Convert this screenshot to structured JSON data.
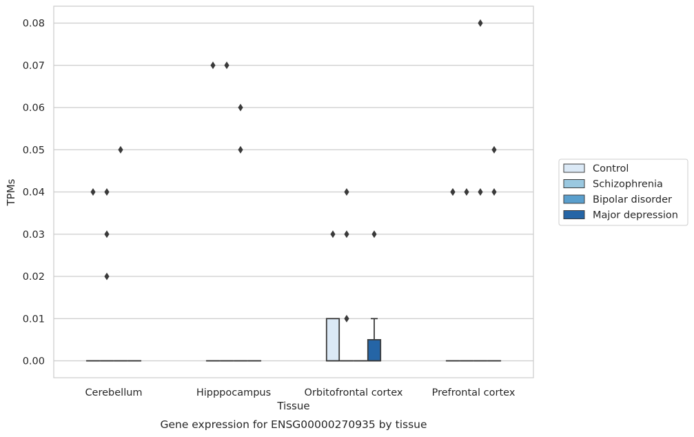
{
  "chart_data": {
    "type": "box",
    "caption": "Gene expression for ENSG00000270935 by tissue",
    "xlabel": "Tissue",
    "ylabel": "TPMs",
    "ylim": [
      -0.004,
      0.084
    ],
    "yticks": [
      0.0,
      0.01,
      0.02,
      0.03,
      0.04,
      0.05,
      0.06,
      0.07,
      0.08
    ],
    "ytick_labels": [
      "0.00",
      "0.01",
      "0.02",
      "0.03",
      "0.04",
      "0.05",
      "0.06",
      "0.07",
      "0.08"
    ],
    "grid": true,
    "legend_position": "right",
    "categories": [
      "Cerebellum",
      "Hipppocampus",
      "Orbitofrontal cortex",
      "Prefrontal cortex"
    ],
    "series": [
      {
        "name": "Control",
        "color": "#dbe9f6",
        "boxes": [
          {
            "q1": 0,
            "median": 0,
            "q3": 0,
            "whisker_low": 0,
            "whisker_high": 0,
            "outliers": [
              0.04
            ]
          },
          {
            "q1": 0,
            "median": 0,
            "q3": 0,
            "whisker_low": 0,
            "whisker_high": 0,
            "outliers": [
              0.07
            ]
          },
          {
            "q1": 0,
            "median": 0,
            "q3": 0.01,
            "whisker_low": 0,
            "whisker_high": 0.01,
            "outliers": [
              0.03
            ]
          },
          {
            "q1": 0,
            "median": 0,
            "q3": 0,
            "whisker_low": 0,
            "whisker_high": 0,
            "outliers": [
              0.04,
              0.04
            ]
          }
        ]
      },
      {
        "name": "Schizophrenia",
        "color": "#9ac8e0",
        "boxes": [
          {
            "q1": 0,
            "median": 0,
            "q3": 0,
            "whisker_low": 0,
            "whisker_high": 0,
            "outliers": [
              0.04,
              0.03,
              0.02
            ]
          },
          {
            "q1": 0,
            "median": 0,
            "q3": 0,
            "whisker_low": 0,
            "whisker_high": 0,
            "outliers": [
              0.07
            ]
          },
          {
            "q1": 0,
            "median": 0,
            "q3": 0,
            "whisker_low": 0,
            "whisker_high": 0,
            "outliers": [
              0.04,
              0.03,
              0.01
            ]
          },
          {
            "q1": 0,
            "median": 0,
            "q3": 0,
            "whisker_low": 0,
            "whisker_high": 0,
            "outliers": [
              0.04
            ]
          }
        ]
      },
      {
        "name": "Bipolar disorder",
        "color": "#5a9fcd",
        "boxes": [
          {
            "q1": 0,
            "median": 0,
            "q3": 0,
            "whisker_low": 0,
            "whisker_high": 0,
            "outliers": [
              0.05
            ]
          },
          {
            "q1": 0,
            "median": 0,
            "q3": 0,
            "whisker_low": 0,
            "whisker_high": 0,
            "outliers": [
              0.06,
              0.05
            ]
          },
          {
            "q1": 0,
            "median": 0,
            "q3": 0,
            "whisker_low": 0,
            "whisker_high": 0,
            "outliers": []
          },
          {
            "q1": 0,
            "median": 0,
            "q3": 0,
            "whisker_low": 0,
            "whisker_high": 0,
            "outliers": [
              0.08,
              0.04
            ]
          }
        ]
      },
      {
        "name": "Major depression",
        "color": "#2565a6",
        "boxes": [
          {
            "q1": 0,
            "median": 0,
            "q3": 0,
            "whisker_low": 0,
            "whisker_high": 0,
            "outliers": []
          },
          {
            "q1": 0,
            "median": 0,
            "q3": 0,
            "whisker_low": 0,
            "whisker_high": 0,
            "outliers": []
          },
          {
            "q1": 0,
            "median": 0,
            "q3": 0.005,
            "whisker_low": 0,
            "whisker_high": 0.01,
            "outliers": [
              0.03
            ]
          },
          {
            "q1": 0,
            "median": 0,
            "q3": 0,
            "whisker_low": 0,
            "whisker_high": 0,
            "outliers": [
              0.05,
              0.04
            ]
          }
        ]
      }
    ]
  }
}
